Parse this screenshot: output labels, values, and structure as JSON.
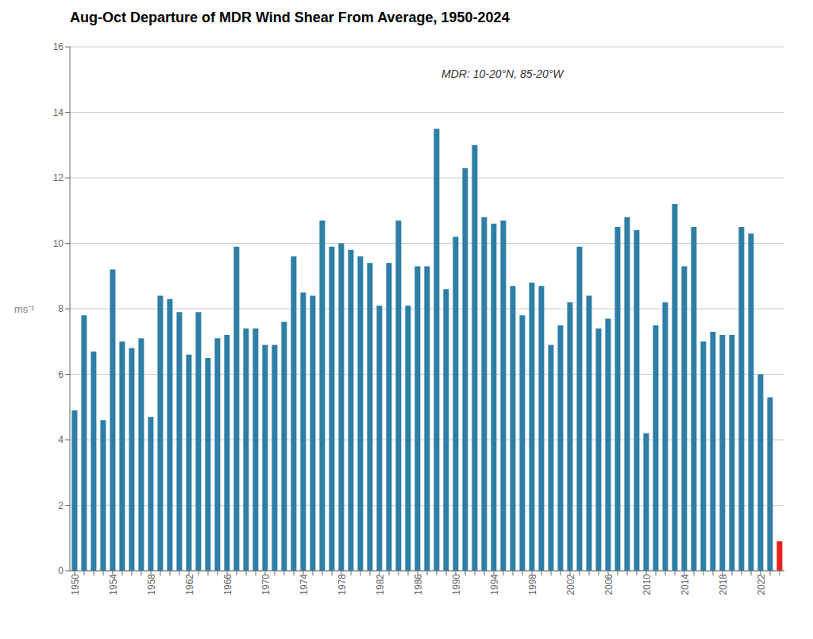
{
  "chart_data": {
    "type": "bar",
    "title": "Aug-Oct Departure of MDR Wind Shear From Average, 1950-2024",
    "ylabel": "ms⁻¹",
    "annotation": "MDR: 10-20°N, 85-20°W",
    "categories": [
      "1950",
      null,
      null,
      null,
      "1954",
      null,
      null,
      null,
      "1958",
      null,
      null,
      null,
      "1962",
      null,
      null,
      null,
      "1966",
      null,
      null,
      null,
      "1970",
      null,
      null,
      null,
      "1974",
      null,
      null,
      null,
      "1978",
      null,
      null,
      null,
      "1982",
      null,
      null,
      null,
      "1986",
      null,
      null,
      null,
      "1990",
      null,
      null,
      null,
      "1994",
      null,
      null,
      null,
      "1998",
      null,
      null,
      null,
      "2002",
      null,
      null,
      null,
      "2006",
      null,
      null,
      null,
      "2010",
      null,
      null,
      null,
      "2014",
      null,
      null,
      null,
      "2018",
      null,
      null,
      null,
      "2022",
      null,
      null
    ],
    "values": [
      4.9,
      7.8,
      6.7,
      4.6,
      9.2,
      7.0,
      6.8,
      7.1,
      4.7,
      8.4,
      8.3,
      7.9,
      6.6,
      7.9,
      6.5,
      7.1,
      7.2,
      9.9,
      7.4,
      7.4,
      6.9,
      6.9,
      7.6,
      9.6,
      8.5,
      8.4,
      10.7,
      9.9,
      10.0,
      9.8,
      9.6,
      9.4,
      8.1,
      9.4,
      10.7,
      8.1,
      9.3,
      9.3,
      13.5,
      8.6,
      10.2,
      12.3,
      13.0,
      10.8,
      10.6,
      10.7,
      8.7,
      7.8,
      8.8,
      8.7,
      6.9,
      7.5,
      8.2,
      9.9,
      8.4,
      7.4,
      7.7,
      10.5,
      10.8,
      10.4,
      4.2,
      7.5,
      8.2,
      11.2,
      9.3,
      10.5,
      7.0,
      7.3,
      7.2,
      7.2,
      10.5,
      10.3,
      6.0,
      5.3,
      0.9
    ],
    "colors": [
      "#2e7ea6",
      "#2e7ea6",
      "#2e7ea6",
      "#2e7ea6",
      "#2e7ea6",
      "#2e7ea6",
      "#2e7ea6",
      "#2e7ea6",
      "#2e7ea6",
      "#2e7ea6",
      "#2e7ea6",
      "#2e7ea6",
      "#2e7ea6",
      "#2e7ea6",
      "#2e7ea6",
      "#2e7ea6",
      "#2e7ea6",
      "#2e7ea6",
      "#2e7ea6",
      "#2e7ea6",
      "#2e7ea6",
      "#2e7ea6",
      "#2e7ea6",
      "#2e7ea6",
      "#2e7ea6",
      "#2e7ea6",
      "#2e7ea6",
      "#2e7ea6",
      "#2e7ea6",
      "#2e7ea6",
      "#2e7ea6",
      "#2e7ea6",
      "#2e7ea6",
      "#2e7ea6",
      "#2e7ea6",
      "#2e7ea6",
      "#2e7ea6",
      "#2e7ea6",
      "#2e7ea6",
      "#2e7ea6",
      "#2e7ea6",
      "#2e7ea6",
      "#2e7ea6",
      "#2e7ea6",
      "#2e7ea6",
      "#2e7ea6",
      "#2e7ea6",
      "#2e7ea6",
      "#2e7ea6",
      "#2e7ea6",
      "#2e7ea6",
      "#2e7ea6",
      "#2e7ea6",
      "#2e7ea6",
      "#2e7ea6",
      "#2e7ea6",
      "#2e7ea6",
      "#2e7ea6",
      "#2e7ea6",
      "#2e7ea6",
      "#2e7ea6",
      "#2e7ea6",
      "#2e7ea6",
      "#2e7ea6",
      "#2e7ea6",
      "#2e7ea6",
      "#2e7ea6",
      "#2e7ea6",
      "#2e7ea6",
      "#2e7ea6",
      "#2e7ea6",
      "#2e7ea6",
      "#2e7ea6",
      "#2e7ea6",
      "#e81e1e"
    ],
    "ylim": [
      0,
      16
    ],
    "yticks": [
      0,
      2,
      4,
      6,
      8,
      10,
      12,
      14,
      16
    ],
    "grid": true
  }
}
